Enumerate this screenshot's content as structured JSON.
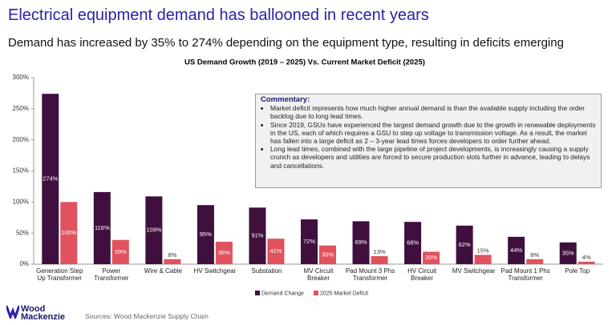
{
  "header": {
    "title": "Electrical equipment demand has ballooned in recent years",
    "subtitle": "Demand has increased by 35% to 274% depending on the equipment type, resulting in deficits emerging"
  },
  "chart_data": {
    "type": "bar",
    "title": "US Demand Growth (2019 – 2025) Vs. Current Market Deficit (2025)",
    "categories": [
      "Generation Step Up Transformer",
      "Power Transformer",
      "Wire & Cable",
      "HV Switchgear",
      "Substation",
      "MV Circuit Breaker",
      "Pad Mount 3 Phs Transformer",
      "HV Circuit Breaker",
      "MV Switchgear",
      "Pad Mount 1 Phs Transformer",
      "Pole Top"
    ],
    "series": [
      {
        "name": "Demand Change",
        "color": "#3f0f3e",
        "values": [
          274,
          116,
          109,
          95,
          91,
          72,
          69,
          68,
          62,
          44,
          35
        ],
        "value_labels": [
          "274%",
          "116%",
          "109%",
          "95%",
          "91%",
          "72%",
          "69%",
          "68%",
          "62%",
          "44%",
          "35%"
        ]
      },
      {
        "name": "2025 Market Deficit",
        "color": "#e0525e",
        "values": [
          100,
          39,
          8,
          36,
          41,
          30,
          13,
          20,
          15,
          8,
          4
        ],
        "value_labels": [
          "100%",
          "39%",
          "8%",
          "36%",
          "41%",
          "30%",
          "13%",
          "20%",
          "15%",
          "8%",
          "4%"
        ]
      }
    ],
    "ylim": [
      0,
      300
    ],
    "yticks": [
      {
        "value": 0,
        "label": "0%"
      },
      {
        "value": 50,
        "label": "50%"
      },
      {
        "value": 100,
        "label": "100%"
      },
      {
        "value": 150,
        "label": "150%"
      },
      {
        "value": 200,
        "label": "200%"
      },
      {
        "value": 250,
        "label": "250%"
      },
      {
        "value": 300,
        "label": "300%"
      }
    ],
    "grid": false,
    "legend": "bottom",
    "annotation": {
      "title": "Commentary:",
      "items": [
        "Market deficit represents how much higher annual demand is than the available supply including the order backlog due to long lead times.",
        "Since 2019, GSUs have experienced the largest demand growth due to the growth in renewable deployments in the US, each of which requires a GSU to step up voltage to transmission voltage. As a result, the market has fallen into a large deficit as 2 – 3-year lead times forces developers to order further ahead.",
        "Long lead times, combined with the large pipeline of project developments, is increasingly causing a supply crunch as developers and utilities are forced to secure production slots further in advance, leading to delays and cancellations."
      ]
    }
  },
  "footer": {
    "logo": [
      "Wood",
      "Mackenzie"
    ],
    "source": "Sources: Wood Mackenzie Supply Chain"
  }
}
